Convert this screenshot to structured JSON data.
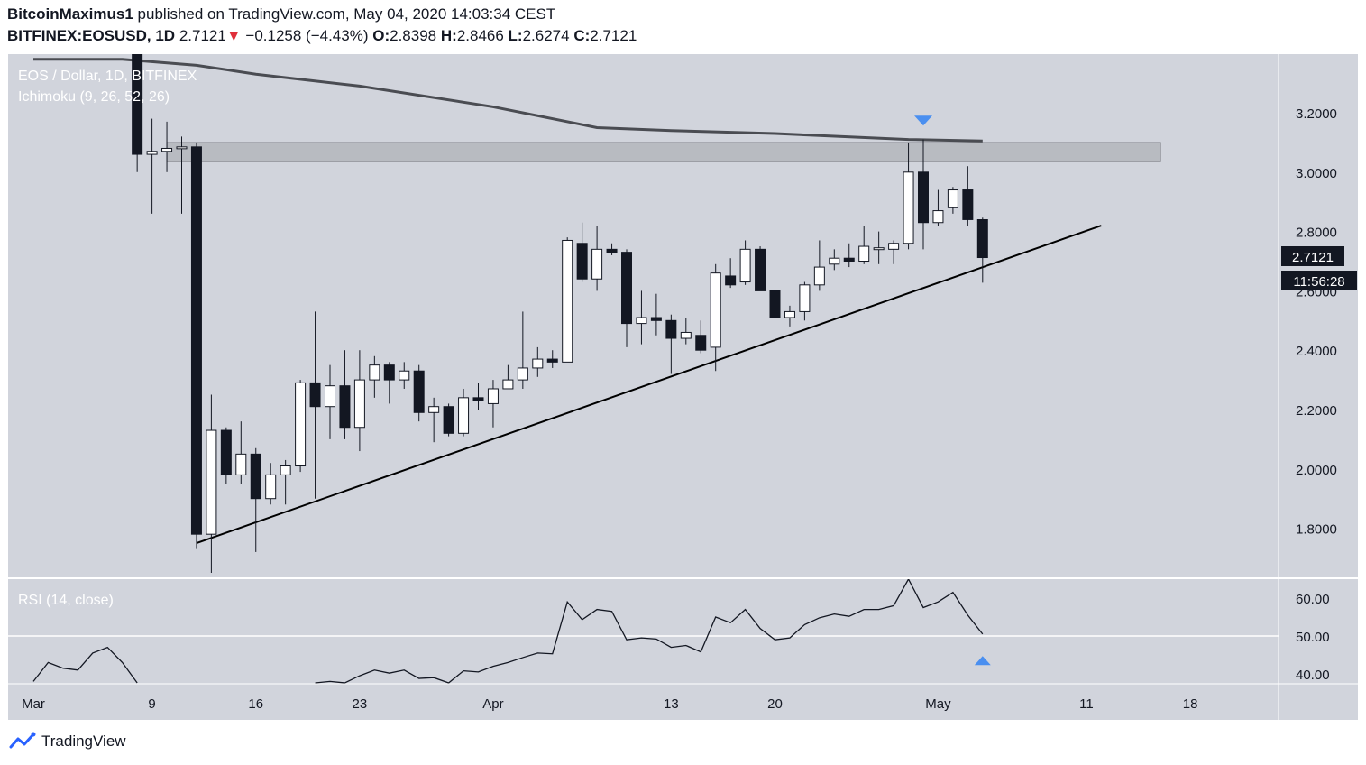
{
  "header": {
    "author": "BitcoinMaximus1",
    "published": "published on TradingView.com, May 04, 2020 14:03:34 CEST",
    "symbol": "BITFINEX:EOSUSD, 1D",
    "last": "2.7121",
    "change": "−0.1258 (−4.43%)",
    "o_label": "O:",
    "o": "2.8398",
    "h_label": "H:",
    "h": "2.8466",
    "l_label": "L:",
    "l": "2.6274",
    "c_label": "C:",
    "c": "2.7121"
  },
  "legend": {
    "main": "EOS / Dollar, 1D, BITFINEX",
    "indicator": "Ichimoku (9, 26, 52, 26)",
    "rsi": "RSI (14, close)"
  },
  "price_label": "2.7121",
  "countdown": "11:56:28",
  "footer": {
    "brand": "TradingView"
  },
  "colors": {
    "pane_bg": "#d1d4dc",
    "candle_up": "#ffffff",
    "candle_down": "#131722",
    "marker": "#4a8ff0",
    "zone": "#b4b6bc"
  },
  "chart_data": {
    "type": "candlestick",
    "price_axis": {
      "min": 1.65,
      "max": 3.4,
      "ticks": [
        "3.2000",
        "3.0000",
        "2.8000",
        "2.6000",
        "2.4000",
        "2.2000",
        "2.0000",
        "1.8000"
      ]
    },
    "time_axis": {
      "ticks": [
        "Mar",
        "9",
        "16",
        "23",
        "Apr",
        "13",
        "20",
        "May",
        "11",
        "18"
      ],
      "first_date": "2020-03-01"
    },
    "candles": [
      {
        "date": "2020-03-08",
        "o": 3.85,
        "h": 3.9,
        "l": 3.0,
        "c": 3.06
      },
      {
        "date": "2020-03-09",
        "o": 3.06,
        "h": 3.18,
        "l": 2.86,
        "c": 3.07
      },
      {
        "date": "2020-03-10",
        "o": 3.07,
        "h": 3.17,
        "l": 3.0,
        "c": 3.08
      },
      {
        "date": "2020-03-11",
        "o": 3.08,
        "h": 3.12,
        "l": 2.86,
        "c": 3.085
      },
      {
        "date": "2020-03-12",
        "o": 3.085,
        "h": 3.1,
        "l": 1.73,
        "c": 1.78
      },
      {
        "date": "2020-03-13",
        "o": 1.78,
        "h": 2.25,
        "l": 1.65,
        "c": 2.13
      },
      {
        "date": "2020-03-14",
        "o": 2.13,
        "h": 2.14,
        "l": 1.95,
        "c": 1.98
      },
      {
        "date": "2020-03-15",
        "o": 1.98,
        "h": 2.16,
        "l": 1.95,
        "c": 2.05
      },
      {
        "date": "2020-03-16",
        "o": 2.05,
        "h": 2.07,
        "l": 1.72,
        "c": 1.9
      },
      {
        "date": "2020-03-17",
        "o": 1.9,
        "h": 2.02,
        "l": 1.88,
        "c": 1.98
      },
      {
        "date": "2020-03-18",
        "o": 1.98,
        "h": 2.03,
        "l": 1.88,
        "c": 2.01
      },
      {
        "date": "2020-03-19",
        "o": 2.01,
        "h": 2.3,
        "l": 1.99,
        "c": 2.29
      },
      {
        "date": "2020-03-20",
        "o": 2.29,
        "h": 2.53,
        "l": 1.9,
        "c": 2.21
      },
      {
        "date": "2020-03-21",
        "o": 2.21,
        "h": 2.35,
        "l": 2.1,
        "c": 2.28
      },
      {
        "date": "2020-03-22",
        "o": 2.28,
        "h": 2.4,
        "l": 2.1,
        "c": 2.14
      },
      {
        "date": "2020-03-23",
        "o": 2.14,
        "h": 2.4,
        "l": 2.06,
        "c": 2.3
      },
      {
        "date": "2020-03-24",
        "o": 2.3,
        "h": 2.38,
        "l": 2.24,
        "c": 2.35
      },
      {
        "date": "2020-03-25",
        "o": 2.35,
        "h": 2.36,
        "l": 2.22,
        "c": 2.3
      },
      {
        "date": "2020-03-26",
        "o": 2.3,
        "h": 2.36,
        "l": 2.27,
        "c": 2.33
      },
      {
        "date": "2020-03-27",
        "o": 2.33,
        "h": 2.35,
        "l": 2.16,
        "c": 2.19
      },
      {
        "date": "2020-03-28",
        "o": 2.19,
        "h": 2.24,
        "l": 2.09,
        "c": 2.21
      },
      {
        "date": "2020-03-29",
        "o": 2.21,
        "h": 2.22,
        "l": 2.11,
        "c": 2.12
      },
      {
        "date": "2020-03-30",
        "o": 2.12,
        "h": 2.27,
        "l": 2.11,
        "c": 2.24
      },
      {
        "date": "2020-03-31",
        "o": 2.24,
        "h": 2.29,
        "l": 2.2,
        "c": 2.23
      },
      {
        "date": "2020-04-01",
        "o": 2.22,
        "h": 2.3,
        "l": 2.14,
        "c": 2.27
      },
      {
        "date": "2020-04-02",
        "o": 2.27,
        "h": 2.35,
        "l": 2.27,
        "c": 2.3
      },
      {
        "date": "2020-04-03",
        "o": 2.3,
        "h": 2.53,
        "l": 2.27,
        "c": 2.34
      },
      {
        "date": "2020-04-04",
        "o": 2.34,
        "h": 2.41,
        "l": 2.31,
        "c": 2.37
      },
      {
        "date": "2020-04-05",
        "o": 2.37,
        "h": 2.4,
        "l": 2.34,
        "c": 2.36
      },
      {
        "date": "2020-04-06",
        "o": 2.36,
        "h": 2.78,
        "l": 2.36,
        "c": 2.77
      },
      {
        "date": "2020-04-07",
        "o": 2.76,
        "h": 2.83,
        "l": 2.63,
        "c": 2.64
      },
      {
        "date": "2020-04-08",
        "o": 2.64,
        "h": 2.82,
        "l": 2.6,
        "c": 2.74
      },
      {
        "date": "2020-04-09",
        "o": 2.74,
        "h": 2.76,
        "l": 2.72,
        "c": 2.73
      },
      {
        "date": "2020-04-10",
        "o": 2.73,
        "h": 2.74,
        "l": 2.41,
        "c": 2.49
      },
      {
        "date": "2020-04-11",
        "o": 2.49,
        "h": 2.6,
        "l": 2.42,
        "c": 2.51
      },
      {
        "date": "2020-04-12",
        "o": 2.51,
        "h": 2.59,
        "l": 2.45,
        "c": 2.5
      },
      {
        "date": "2020-04-13",
        "o": 2.5,
        "h": 2.52,
        "l": 2.32,
        "c": 2.44
      },
      {
        "date": "2020-04-14",
        "o": 2.44,
        "h": 2.51,
        "l": 2.42,
        "c": 2.46
      },
      {
        "date": "2020-04-15",
        "o": 2.45,
        "h": 2.5,
        "l": 2.39,
        "c": 2.4
      },
      {
        "date": "2020-04-16",
        "o": 2.41,
        "h": 2.69,
        "l": 2.33,
        "c": 2.66
      },
      {
        "date": "2020-04-17",
        "o": 2.65,
        "h": 2.71,
        "l": 2.61,
        "c": 2.62
      },
      {
        "date": "2020-04-18",
        "o": 2.63,
        "h": 2.77,
        "l": 2.62,
        "c": 2.74
      },
      {
        "date": "2020-04-19",
        "o": 2.74,
        "h": 2.75,
        "l": 2.6,
        "c": 2.6
      },
      {
        "date": "2020-04-20",
        "o": 2.6,
        "h": 2.68,
        "l": 2.44,
        "c": 2.51
      },
      {
        "date": "2020-04-21",
        "o": 2.51,
        "h": 2.55,
        "l": 2.48,
        "c": 2.53
      },
      {
        "date": "2020-04-22",
        "o": 2.53,
        "h": 2.63,
        "l": 2.5,
        "c": 2.62
      },
      {
        "date": "2020-04-23",
        "o": 2.62,
        "h": 2.77,
        "l": 2.6,
        "c": 2.68
      },
      {
        "date": "2020-04-24",
        "o": 2.69,
        "h": 2.74,
        "l": 2.67,
        "c": 2.71
      },
      {
        "date": "2020-04-25",
        "o": 2.71,
        "h": 2.76,
        "l": 2.68,
        "c": 2.7
      },
      {
        "date": "2020-04-26",
        "o": 2.7,
        "h": 2.82,
        "l": 2.69,
        "c": 2.75
      },
      {
        "date": "2020-04-27",
        "o": 2.74,
        "h": 2.8,
        "l": 2.69,
        "c": 2.745
      },
      {
        "date": "2020-04-28",
        "o": 2.74,
        "h": 2.77,
        "l": 2.69,
        "c": 2.76
      },
      {
        "date": "2020-04-29",
        "o": 2.76,
        "h": 3.1,
        "l": 2.74,
        "c": 3.0
      },
      {
        "date": "2020-04-30",
        "o": 3.0,
        "h": 3.11,
        "l": 2.74,
        "c": 2.83
      },
      {
        "date": "2020-05-01",
        "o": 2.83,
        "h": 2.94,
        "l": 2.82,
        "c": 2.87
      },
      {
        "date": "2020-05-02",
        "o": 2.88,
        "h": 2.95,
        "l": 2.86,
        "c": 2.94
      },
      {
        "date": "2020-05-03",
        "o": 2.94,
        "h": 3.02,
        "l": 2.82,
        "c": 2.84
      },
      {
        "date": "2020-05-04",
        "o": 2.8398,
        "h": 2.8466,
        "l": 2.6274,
        "c": 2.7121
      }
    ],
    "ma_line": [
      {
        "date": "2020-03-01",
        "v": 3.38
      },
      {
        "date": "2020-03-07",
        "v": 3.38
      },
      {
        "date": "2020-03-12",
        "v": 3.36
      },
      {
        "date": "2020-03-16",
        "v": 3.33
      },
      {
        "date": "2020-03-23",
        "v": 3.29
      },
      {
        "date": "2020-04-01",
        "v": 3.22
      },
      {
        "date": "2020-04-08",
        "v": 3.15
      },
      {
        "date": "2020-04-13",
        "v": 3.14
      },
      {
        "date": "2020-04-20",
        "v": 3.13
      },
      {
        "date": "2020-04-29",
        "v": 3.11
      },
      {
        "date": "2020-05-04",
        "v": 3.105
      }
    ],
    "resistance_zone": {
      "from": "2020-03-10",
      "to": "2020-05-16",
      "low": 3.035,
      "high": 3.1
    },
    "trendline": [
      {
        "date": "2020-03-12",
        "v": 1.75
      },
      {
        "date": "2020-05-12",
        "v": 2.82
      }
    ],
    "top_marker": {
      "date": "2020-04-30",
      "v": 3.175
    },
    "rsi": {
      "ticks": [
        "60.00",
        "50.00",
        "40.00"
      ],
      "min": 37,
      "max": 66,
      "level": 50,
      "points": [
        {
          "date": "2020-03-01",
          "v": 38
        },
        {
          "date": "2020-03-02",
          "v": 43
        },
        {
          "date": "2020-03-03",
          "v": 41.5
        },
        {
          "date": "2020-03-04",
          "v": 41
        },
        {
          "date": "2020-03-05",
          "v": 45.5
        },
        {
          "date": "2020-03-06",
          "v": 47
        },
        {
          "date": "2020-03-07",
          "v": 43
        },
        {
          "date": "2020-03-08",
          "v": 36
        },
        {
          "date": "2020-03-20",
          "v": 36.5
        },
        {
          "date": "2020-03-21",
          "v": 38
        },
        {
          "date": "2020-03-22",
          "v": 37
        },
        {
          "date": "2020-03-23",
          "v": 39.5
        },
        {
          "date": "2020-03-24",
          "v": 41
        },
        {
          "date": "2020-03-25",
          "v": 40.2
        },
        {
          "date": "2020-03-26",
          "v": 41
        },
        {
          "date": "2020-03-27",
          "v": 38.8
        },
        {
          "date": "2020-03-28",
          "v": 39
        },
        {
          "date": "2020-03-29",
          "v": 37.5
        },
        {
          "date": "2020-03-30",
          "v": 40.8
        },
        {
          "date": "2020-03-31",
          "v": 40.5
        },
        {
          "date": "2020-04-01",
          "v": 42
        },
        {
          "date": "2020-04-02",
          "v": 43
        },
        {
          "date": "2020-04-03",
          "v": 44.3
        },
        {
          "date": "2020-04-04",
          "v": 45.5
        },
        {
          "date": "2020-04-05",
          "v": 45.3
        },
        {
          "date": "2020-04-06",
          "v": 59
        },
        {
          "date": "2020-04-07",
          "v": 54.3
        },
        {
          "date": "2020-04-08",
          "v": 57
        },
        {
          "date": "2020-04-09",
          "v": 56.5
        },
        {
          "date": "2020-04-10",
          "v": 49
        },
        {
          "date": "2020-04-11",
          "v": 49.5
        },
        {
          "date": "2020-04-12",
          "v": 49.2
        },
        {
          "date": "2020-04-13",
          "v": 47
        },
        {
          "date": "2020-04-14",
          "v": 47.5
        },
        {
          "date": "2020-04-15",
          "v": 45.8
        },
        {
          "date": "2020-04-16",
          "v": 55
        },
        {
          "date": "2020-04-17",
          "v": 53.5
        },
        {
          "date": "2020-04-18",
          "v": 57
        },
        {
          "date": "2020-04-19",
          "v": 52
        },
        {
          "date": "2020-04-20",
          "v": 49
        },
        {
          "date": "2020-04-21",
          "v": 49.5
        },
        {
          "date": "2020-04-22",
          "v": 53
        },
        {
          "date": "2020-04-23",
          "v": 54.8
        },
        {
          "date": "2020-04-24",
          "v": 55.8
        },
        {
          "date": "2020-04-25",
          "v": 55.2
        },
        {
          "date": "2020-04-26",
          "v": 57
        },
        {
          "date": "2020-04-27",
          "v": 57
        },
        {
          "date": "2020-04-28",
          "v": 58
        },
        {
          "date": "2020-04-29",
          "v": 66
        },
        {
          "date": "2020-04-30",
          "v": 57.5
        },
        {
          "date": "2020-05-01",
          "v": 59
        },
        {
          "date": "2020-05-02",
          "v": 61.5
        },
        {
          "date": "2020-05-03",
          "v": 55.5
        },
        {
          "date": "2020-05-04",
          "v": 50.5
        }
      ],
      "bottom_marker": {
        "date": "2020-05-04",
        "v": 43.5
      }
    }
  }
}
